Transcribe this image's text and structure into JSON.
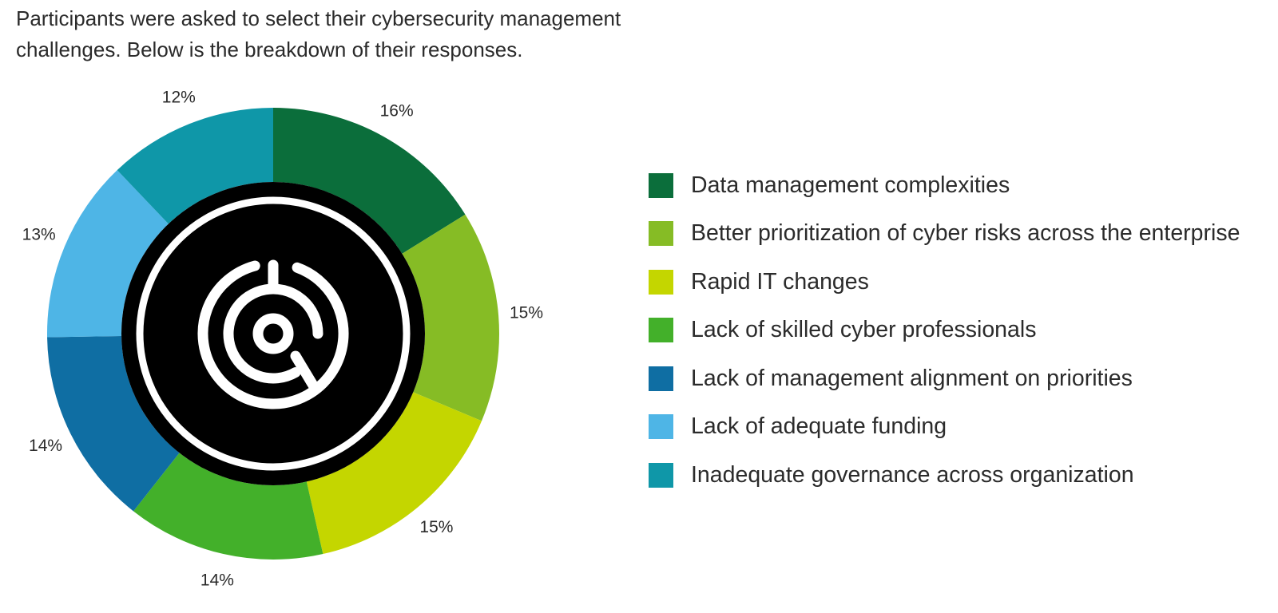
{
  "intro_text": "Participants were asked to select their cybersecurity management challenges. Below is the breakdown of their responses.",
  "center_icon": "maze-target-icon",
  "chart_data": {
    "type": "pie",
    "variant": "donut",
    "start": "top, clockwise",
    "legend_position": "right",
    "slices": [
      {
        "label": "Data management complexities",
        "value": 16,
        "value_label": "16%",
        "color": "#0b6e3b"
      },
      {
        "label": "Better prioritization of cyber risks across the enterprise",
        "value": 15,
        "value_label": "15%",
        "color": "#86bc25"
      },
      {
        "label": "Rapid IT changes",
        "value": 15,
        "value_label": "15%",
        "color": "#c4d600"
      },
      {
        "label": "Lack of skilled cyber professionals",
        "value": 14,
        "value_label": "14%",
        "color": "#43b02a"
      },
      {
        "label": "Lack of management alignment on priorities",
        "value": 14,
        "value_label": "14%",
        "color": "#0f6ea3"
      },
      {
        "label": "Lack of adequate funding",
        "value": 13,
        "value_label": "13%",
        "color": "#4eb5e6"
      },
      {
        "label": "Inadequate governance across organization",
        "value": 12,
        "value_label": "12%",
        "color": "#0f97a8"
      }
    ]
  }
}
